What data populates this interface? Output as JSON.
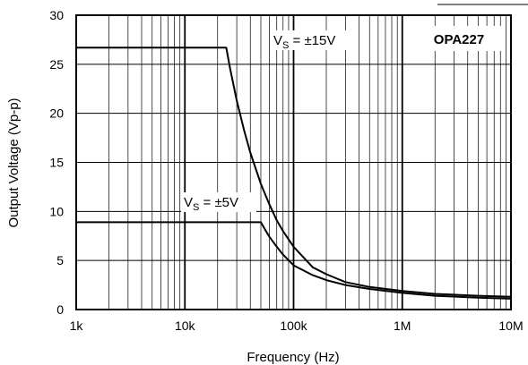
{
  "chart_data": {
    "type": "line",
    "title": "",
    "xlabel": "Frequency (Hz)",
    "ylabel": "Output Voltage (Vp-p)",
    "x_scale": "log",
    "xlim": [
      1000,
      10000000
    ],
    "ylim": [
      0,
      30
    ],
    "x_ticks": [
      1000,
      10000,
      100000,
      1000000,
      10000000
    ],
    "x_tick_labels": [
      "1k",
      "10k",
      "100k",
      "1M",
      "10M"
    ],
    "y_ticks": [
      0,
      5,
      10,
      15,
      20,
      25,
      30
    ],
    "y_tick_labels": [
      "0",
      "5",
      "10",
      "15",
      "20",
      "25",
      "30"
    ],
    "grid": true,
    "series": [
      {
        "label_main": "V",
        "label_sub": "S",
        "label_rest": " = ±15V",
        "x": [
          1000,
          24000,
          26000,
          30000,
          35000,
          40000,
          50000,
          60000,
          70000,
          80000,
          100000,
          150000,
          200000,
          300000,
          500000,
          1000000,
          2000000,
          5000000,
          10000000
        ],
        "y": [
          26.7,
          26.7,
          24.6,
          21.3,
          18.3,
          16.0,
          12.8,
          10.7,
          9.1,
          8.0,
          6.4,
          4.3,
          3.6,
          2.8,
          2.3,
          1.9,
          1.6,
          1.4,
          1.3
        ]
      },
      {
        "label_main": "V",
        "label_sub": "S",
        "label_rest": " = ±5V",
        "x": [
          1000,
          50000,
          55000,
          60000,
          70000,
          80000,
          100000,
          150000,
          200000,
          300000,
          500000,
          1000000,
          2000000,
          5000000,
          10000000
        ],
        "y": [
          8.9,
          8.9,
          8.1,
          7.4,
          6.4,
          5.6,
          4.5,
          3.5,
          3.0,
          2.5,
          2.1,
          1.7,
          1.4,
          1.2,
          1.1
        ]
      }
    ],
    "annotation": "OPA227"
  }
}
